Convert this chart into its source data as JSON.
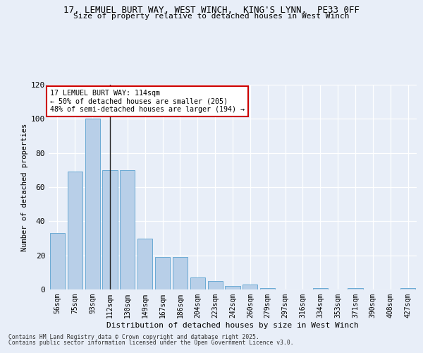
{
  "title_line1": "17, LEMUEL BURT WAY, WEST WINCH,  KING'S LYNN,  PE33 0FF",
  "title_line2": "Size of property relative to detached houses in West Winch",
  "xlabel": "Distribution of detached houses by size in West Winch",
  "ylabel": "Number of detached properties",
  "categories": [
    "56sqm",
    "75sqm",
    "93sqm",
    "112sqm",
    "130sqm",
    "149sqm",
    "167sqm",
    "186sqm",
    "204sqm",
    "223sqm",
    "242sqm",
    "260sqm",
    "279sqm",
    "297sqm",
    "316sqm",
    "334sqm",
    "353sqm",
    "371sqm",
    "390sqm",
    "408sqm",
    "427sqm"
  ],
  "values": [
    33,
    69,
    100,
    70,
    70,
    30,
    19,
    19,
    7,
    5,
    2,
    3,
    1,
    0,
    0,
    1,
    0,
    1,
    0,
    0,
    1
  ],
  "bar_color": "#b8cfe8",
  "bar_edge_color": "#6aaad4",
  "background_color": "#e8eef8",
  "grid_color": "#ffffff",
  "annotation_text": "17 LEMUEL BURT WAY: 114sqm\n← 50% of detached houses are smaller (205)\n48% of semi-detached houses are larger (194) →",
  "annotation_bar_index": 3,
  "vline_color": "#222222",
  "annotation_box_color": "#ffffff",
  "annotation_box_edge": "#cc0000",
  "footer_line1": "Contains HM Land Registry data © Crown copyright and database right 2025.",
  "footer_line2": "Contains public sector information licensed under the Open Government Licence v3.0.",
  "ylim": [
    0,
    120
  ],
  "yticks": [
    0,
    20,
    40,
    60,
    80,
    100,
    120
  ]
}
